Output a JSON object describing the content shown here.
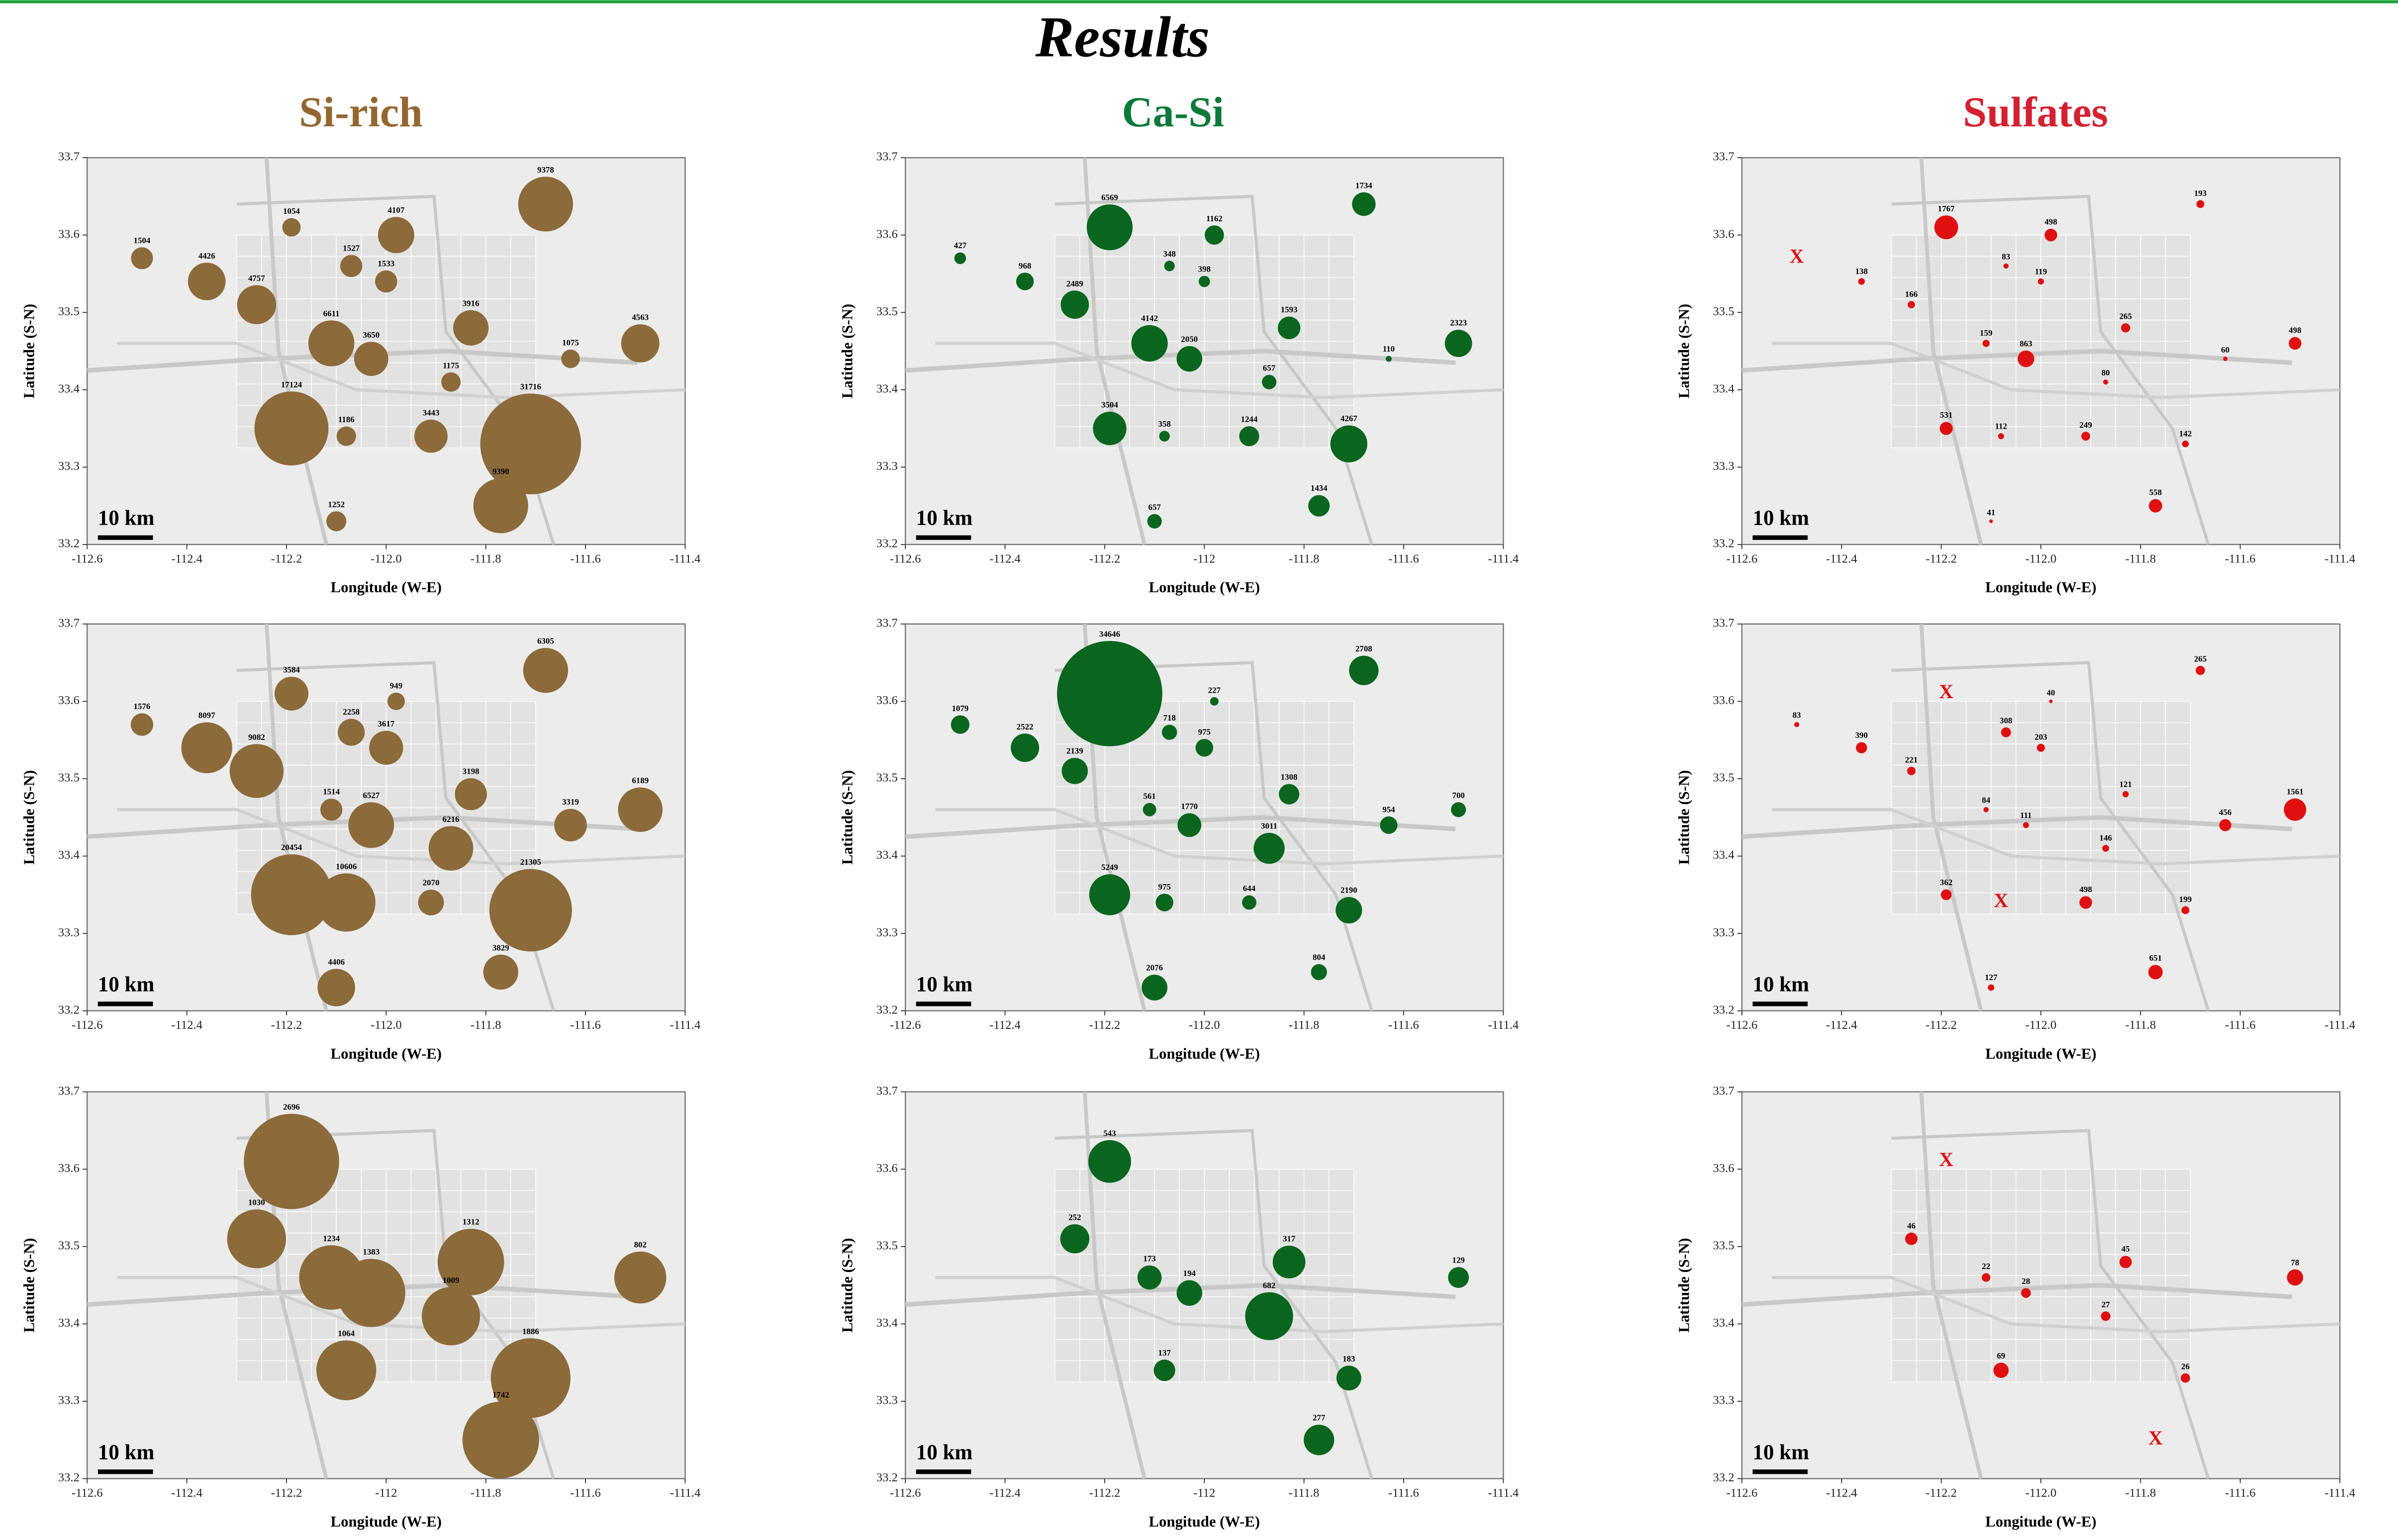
{
  "title": "Results",
  "columns": [
    {
      "title": "Si-rich",
      "color": "#93672f"
    },
    {
      "title": "Ca-Si",
      "color": "#0b7a3a"
    },
    {
      "title": "Sulfates",
      "color": "#d42030"
    }
  ],
  "chart_data": [
    {
      "type": "scatter",
      "xlabel": "Longitude (W-E)",
      "ylabel": "Latitude (S-N)",
      "scale_label": "10 km",
      "color": "#8c6a3a",
      "xlim": [
        -112.6,
        -111.4
      ],
      "ylim": [
        33.2,
        33.7
      ],
      "xticks": [
        -112.6,
        -112.4,
        -112.2,
        {
          "value": -112,
          "label": "-112.0"
        },
        -111.8,
        -111.6,
        -111.4
      ],
      "yticks": [
        33.2,
        33.3,
        33.4,
        33.5,
        33.6,
        33.7
      ],
      "x": [
        -112.49,
        -112.36,
        -112.26,
        -112.19,
        -112.07,
        -112.0,
        -111.98,
        -111.68,
        -112.11,
        -112.03,
        -111.83,
        -111.49,
        -111.63,
        -111.87,
        -112.19,
        -112.08,
        -111.91,
        -111.71,
        -111.77,
        -112.1
      ],
      "y": [
        33.57,
        33.54,
        33.51,
        33.61,
        33.56,
        33.54,
        33.6,
        33.64,
        33.46,
        33.44,
        33.48,
        33.46,
        33.44,
        33.41,
        33.35,
        33.34,
        33.34,
        33.33,
        33.25,
        33.23
      ],
      "values": [
        1504,
        4426,
        4757,
        1054,
        1527,
        1533,
        4107,
        9378,
        6611,
        3650,
        3916,
        4563,
        1075,
        1175,
        17124,
        1186,
        3443,
        31716,
        9390,
        1252
      ]
    },
    {
      "type": "scatter",
      "xlabel": "Longitude (W-E)",
      "ylabel": "Latitude (S-N)",
      "scale_label": "10 km",
      "color": "#0a661e",
      "xlim": [
        -112.6,
        -111.4
      ],
      "ylim": [
        33.2,
        33.7
      ],
      "xticks": [
        -112.6,
        -112.4,
        -112.2,
        -112,
        -111.8,
        -111.6,
        -111.4
      ],
      "yticks": [
        33.2,
        33.3,
        33.4,
        33.5,
        33.6,
        33.7
      ],
      "x": [
        -112.49,
        -112.36,
        -112.26,
        -112.19,
        -112.07,
        -112.0,
        -111.98,
        -111.68,
        -112.11,
        -112.03,
        -111.83,
        -111.49,
        -111.63,
        -111.87,
        -112.19,
        -112.08,
        -111.91,
        -111.71,
        -111.77,
        -112.1
      ],
      "y": [
        33.57,
        33.54,
        33.51,
        33.61,
        33.56,
        33.54,
        33.6,
        33.64,
        33.46,
        33.44,
        33.48,
        33.46,
        33.44,
        33.41,
        33.35,
        33.34,
        33.34,
        33.33,
        33.25,
        33.23
      ],
      "values": [
        427,
        968,
        2489,
        6569,
        348,
        398,
        1162,
        1734,
        4142,
        2050,
        1593,
        2323,
        110,
        657,
        3504,
        358,
        1244,
        4267,
        1434,
        657
      ]
    },
    {
      "type": "scatter",
      "xlabel": "Longitude (W-E)",
      "ylabel": "Latitude (S-N)",
      "scale_label": "10 km",
      "color": "#e01010",
      "xlim": [
        -112.6,
        -111.4
      ],
      "ylim": [
        33.2,
        33.7
      ],
      "xticks": [
        -112.6,
        -112.4,
        -112.2,
        {
          "value": -112,
          "label": "-112.0"
        },
        -111.8,
        -111.6,
        -111.4
      ],
      "yticks": [
        33.2,
        33.3,
        33.4,
        33.5,
        33.6,
        33.7
      ],
      "x": [
        -112.36,
        -112.26,
        -112.19,
        -112.07,
        -112.0,
        -111.98,
        -111.68,
        -112.11,
        -112.03,
        -111.83,
        -111.49,
        -111.63,
        -111.87,
        -112.19,
        -112.08,
        -111.91,
        -111.71,
        -111.77,
        -112.1
      ],
      "y": [
        33.54,
        33.51,
        33.61,
        33.56,
        33.54,
        33.6,
        33.64,
        33.46,
        33.44,
        33.48,
        33.46,
        33.44,
        33.41,
        33.35,
        33.34,
        33.34,
        33.33,
        33.25,
        33.23
      ],
      "values": [
        138,
        166,
        1767,
        83,
        119,
        498,
        193,
        159,
        863,
        265,
        498,
        60,
        80,
        531,
        112,
        249,
        142,
        558,
        41
      ],
      "missing": {
        "label": "X",
        "x": [
          -112.49
        ],
        "y": [
          33.57
        ]
      }
    },
    {
      "type": "scatter",
      "xlabel": "Longitude (W-E)",
      "ylabel": "Latitude (S-N)",
      "scale_label": "10 km",
      "color": "#8c6a3a",
      "xlim": [
        -112.6,
        -111.4
      ],
      "ylim": [
        33.2,
        33.7
      ],
      "xticks": [
        -112.6,
        -112.4,
        -112.2,
        {
          "value": -112,
          "label": "-112.0"
        },
        -111.8,
        -111.6,
        -111.4
      ],
      "yticks": [
        33.2,
        33.3,
        33.4,
        33.5,
        33.6,
        33.7
      ],
      "x": [
        -112.49,
        -112.36,
        -112.26,
        -112.19,
        -112.07,
        -112.0,
        -111.98,
        -111.68,
        -112.11,
        -112.03,
        -111.83,
        -111.49,
        -111.63,
        -111.87,
        -112.19,
        -112.08,
        -111.91,
        -111.71,
        -111.77,
        -112.1
      ],
      "y": [
        33.57,
        33.54,
        33.51,
        33.61,
        33.56,
        33.54,
        33.6,
        33.64,
        33.46,
        33.44,
        33.48,
        33.46,
        33.44,
        33.41,
        33.35,
        33.34,
        33.34,
        33.33,
        33.25,
        33.23
      ],
      "values": [
        1576,
        8097,
        9082,
        3584,
        2258,
        3617,
        949,
        6305,
        1514,
        6527,
        3198,
        6189,
        3319,
        6216,
        20454,
        10606,
        2070,
        21305,
        3829,
        4406
      ]
    },
    {
      "type": "scatter",
      "xlabel": "Longitude (W-E)",
      "ylabel": "Latitude (S-N)",
      "scale_label": "10 km",
      "color": "#0a661e",
      "xlim": [
        -112.6,
        -111.4
      ],
      "ylim": [
        33.2,
        33.7
      ],
      "xticks": [
        -112.6,
        -112.4,
        -112.2,
        {
          "value": -112,
          "label": "-112.0"
        },
        -111.8,
        -111.6,
        -111.4
      ],
      "yticks": [
        33.2,
        33.3,
        33.4,
        33.5,
        33.6,
        33.7
      ],
      "x": [
        -112.49,
        -112.36,
        -112.26,
        -112.19,
        -112.07,
        -112.0,
        -111.98,
        -111.68,
        -112.11,
        -112.03,
        -111.83,
        -111.49,
        -111.63,
        -111.87,
        -112.19,
        -112.08,
        -111.91,
        -111.71,
        -111.77,
        -112.1
      ],
      "y": [
        33.57,
        33.54,
        33.51,
        33.61,
        33.56,
        33.54,
        33.6,
        33.64,
        33.46,
        33.44,
        33.48,
        33.46,
        33.44,
        33.41,
        33.35,
        33.34,
        33.34,
        33.33,
        33.25,
        33.23
      ],
      "values": [
        1079,
        2522,
        2139,
        34646,
        718,
        975,
        227,
        2708,
        561,
        1770,
        1308,
        700,
        954,
        3011,
        5249,
        975,
        644,
        2190,
        804,
        2076
      ]
    },
    {
      "type": "scatter",
      "xlabel": "Longitude (W-E)",
      "ylabel": "Latitude (S-N)",
      "scale_label": "10 km",
      "color": "#e01010",
      "xlim": [
        -112.6,
        -111.4
      ],
      "ylim": [
        33.2,
        33.7
      ],
      "xticks": [
        -112.6,
        -112.4,
        -112.2,
        {
          "value": -112,
          "label": "-112.0"
        },
        -111.8,
        -111.6,
        -111.4
      ],
      "yticks": [
        33.2,
        33.3,
        33.4,
        33.5,
        33.6,
        33.7
      ],
      "x": [
        -112.49,
        -112.36,
        -112.26,
        -112.07,
        -112.0,
        -111.98,
        -111.68,
        -112.11,
        -112.03,
        -111.83,
        -111.49,
        -111.63,
        -111.87,
        -112.19,
        -111.91,
        -111.71,
        -111.77,
        -112.1
      ],
      "y": [
        33.57,
        33.54,
        33.51,
        33.56,
        33.54,
        33.6,
        33.64,
        33.46,
        33.44,
        33.48,
        33.46,
        33.44,
        33.41,
        33.35,
        33.34,
        33.33,
        33.25,
        33.23
      ],
      "values": [
        83,
        390,
        221,
        308,
        203,
        40,
        265,
        84,
        111,
        121,
        1561,
        456,
        146,
        362,
        498,
        199,
        651,
        127
      ],
      "missing": {
        "label": "X",
        "x": [
          -112.19,
          -112.08
        ],
        "y": [
          33.61,
          33.34
        ]
      }
    },
    {
      "type": "scatter",
      "xlabel": "Longitude (W-E)",
      "ylabel": "Latitude (S-N)",
      "scale_label": "10 km",
      "color": "#8c6a3a",
      "xlim": [
        -112.6,
        -111.4
      ],
      "ylim": [
        33.2,
        33.7
      ],
      "xticks": [
        -112.6,
        -112.4,
        -112.2,
        -112,
        -111.8,
        -111.6,
        -111.4
      ],
      "yticks": [
        33.2,
        33.3,
        33.4,
        33.5,
        33.6,
        33.7
      ],
      "x": [
        -112.19,
        -112.26,
        -112.11,
        -112.03,
        -111.83,
        -111.87,
        -111.49,
        -112.08,
        -111.71,
        -111.77
      ],
      "y": [
        33.61,
        33.51,
        33.46,
        33.44,
        33.48,
        33.41,
        33.46,
        33.34,
        33.33,
        33.25
      ],
      "values": [
        2696,
        1030,
        1234,
        1383,
        1312,
        1009,
        802,
        1064,
        1886,
        1742
      ]
    },
    {
      "type": "scatter",
      "xlabel": "Longitude (W-E)",
      "ylabel": "Latitude (S-N)",
      "scale_label": "10 km",
      "color": "#0a661e",
      "xlim": [
        -112.6,
        -111.4
      ],
      "ylim": [
        33.2,
        33.7
      ],
      "xticks": [
        -112.6,
        -112.4,
        -112.2,
        -112,
        -111.8,
        -111.6,
        -111.4
      ],
      "yticks": [
        33.2,
        33.3,
        33.4,
        33.5,
        33.6,
        33.7
      ],
      "x": [
        -112.19,
        -112.26,
        -112.11,
        -112.03,
        -111.83,
        -111.87,
        -111.49,
        -112.08,
        -111.71,
        -111.77
      ],
      "y": [
        33.61,
        33.51,
        33.46,
        33.44,
        33.48,
        33.41,
        33.46,
        33.34,
        33.33,
        33.25
      ],
      "values": [
        543,
        252,
        173,
        194,
        317,
        682,
        129,
        137,
        183,
        277
      ]
    },
    {
      "type": "scatter",
      "xlabel": "Longitude (W-E)",
      "ylabel": "Latitude (S-N)",
      "scale_label": "10 km",
      "color": "#e01010",
      "xlim": [
        -112.6,
        -111.4
      ],
      "ylim": [
        33.2,
        33.7
      ],
      "xticks": [
        -112.6,
        -112.4,
        -112.2,
        {
          "value": -112,
          "label": "-112.0"
        },
        -111.8,
        -111.6,
        -111.4
      ],
      "yticks": [
        33.2,
        33.3,
        33.4,
        33.5,
        33.6,
        33.7
      ],
      "x": [
        -112.26,
        -112.11,
        -112.03,
        -111.83,
        -111.87,
        -111.49,
        -112.08,
        -111.71
      ],
      "y": [
        33.51,
        33.46,
        33.44,
        33.48,
        33.41,
        33.46,
        33.34,
        33.33
      ],
      "values": [
        46,
        22,
        28,
        45,
        27,
        78,
        69,
        26
      ],
      "missing": {
        "label": "X",
        "x": [
          -112.19,
          -111.77
        ],
        "y": [
          33.61,
          33.25
        ]
      }
    }
  ]
}
